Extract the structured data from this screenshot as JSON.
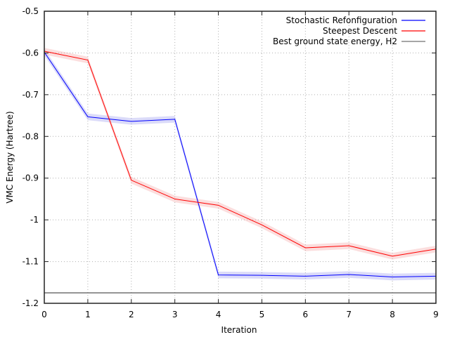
{
  "chart_data": {
    "type": "line",
    "title": "",
    "xlabel": "Iteration",
    "ylabel": "VMC Energy (Hartree)",
    "x": [
      0,
      1,
      2,
      3,
      4,
      5,
      6,
      7,
      8,
      9
    ],
    "xlim": [
      0,
      9
    ],
    "ylim": [
      -1.2,
      -0.5
    ],
    "xticks": [
      "0",
      "1",
      "2",
      "3",
      "4",
      "5",
      "6",
      "7",
      "8",
      "9"
    ],
    "yticks": [
      -0.5,
      -0.6,
      -0.7,
      -0.8,
      -0.9,
      -1.0,
      -1.1,
      -1.2
    ],
    "ytick_labels": [
      "-0.5",
      "-0.6",
      "-0.7",
      "-0.8",
      "-0.9",
      "-1",
      "-1.1",
      "-1.2"
    ],
    "grid": true,
    "legend_position": "upper right",
    "series": [
      {
        "name": "Stochastic Refonfiguration",
        "color": "#0000ff",
        "band_color": "#9999ee",
        "values": [
          -0.598,
          -0.753,
          -0.764,
          -0.759,
          -1.132,
          -1.133,
          -1.135,
          -1.131,
          -1.137,
          -1.135
        ],
        "error": 0.008
      },
      {
        "name": "Steepest Descent",
        "color": "#ff0000",
        "band_color": "#f4a0a0",
        "values": [
          -0.596,
          -0.617,
          -0.905,
          -0.95,
          -0.965,
          -1.012,
          -1.067,
          -1.062,
          -1.087,
          -1.07
        ],
        "error": 0.008
      },
      {
        "name": "Best ground state energy, H2",
        "color": "#707070",
        "type": "hline",
        "value": -1.175
      }
    ]
  }
}
